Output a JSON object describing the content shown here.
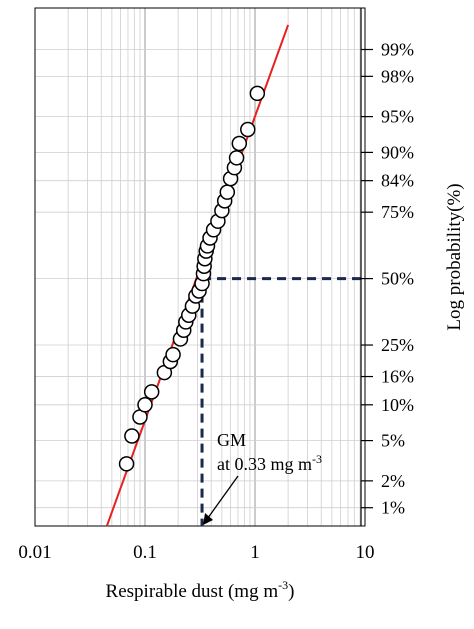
{
  "chart_data": {
    "type": "scatter",
    "title": "",
    "xlabel": "Respirable dust (mg m",
    "xlabel_sup": "-3",
    "xlabel_end": ")",
    "ylabel": "Log probability(%)",
    "x_scale": "log",
    "y_scale": "probability",
    "xlim": [
      0.01,
      10
    ],
    "ylim_percent": [
      0.6,
      99.7
    ],
    "grid": true,
    "x_ticks": [
      {
        "value": 0.01,
        "label": "0.01"
      },
      {
        "value": 0.1,
        "label": "0.1"
      },
      {
        "value": 1,
        "label": "1"
      },
      {
        "value": 10,
        "label": "10"
      }
    ],
    "y_ticks": [
      {
        "value": 99,
        "label": "99%"
      },
      {
        "value": 98,
        "label": "98%"
      },
      {
        "value": 95,
        "label": "95%"
      },
      {
        "value": 90,
        "label": "90%"
      },
      {
        "value": 84,
        "label": "84%"
      },
      {
        "value": 75,
        "label": "75%"
      },
      {
        "value": 50,
        "label": "50%"
      },
      {
        "value": 25,
        "label": "25%"
      },
      {
        "value": 16,
        "label": "16%"
      },
      {
        "value": 10,
        "label": "10%"
      },
      {
        "value": 5,
        "label": "5%"
      },
      {
        "value": 2,
        "label": "2%"
      },
      {
        "value": 1,
        "label": "1%"
      }
    ],
    "series": [
      {
        "marker": "open-circle",
        "x": [
          0.068,
          0.076,
          0.09,
          0.1,
          0.115,
          0.15,
          0.17,
          0.18,
          0.21,
          0.225,
          0.235,
          0.25,
          0.27,
          0.29,
          0.31,
          0.33,
          0.34,
          0.345,
          0.35,
          0.36,
          0.37,
          0.39,
          0.42,
          0.46,
          0.5,
          0.53,
          0.56,
          0.6,
          0.65,
          0.68,
          0.72,
          0.86,
          1.05
        ],
        "y": [
          3.0,
          5.5,
          8.0,
          10.0,
          12.5,
          17.0,
          20.0,
          22.0,
          27.0,
          30.0,
          33.0,
          35.5,
          39.0,
          43.0,
          45.0,
          48.0,
          52.0,
          55.0,
          58.0,
          61.0,
          63.0,
          66.0,
          69.0,
          72.0,
          75.5,
          78.5,
          81.0,
          84.5,
          87.0,
          89.0,
          91.5,
          93.5,
          97.0
        ]
      },
      {
        "type": "fit-line",
        "color": "#e8201e",
        "x": [
          0.045,
          2.0
        ],
        "y": [
          0.6,
          99.5
        ]
      }
    ],
    "annotations": [
      {
        "text_line1": "GM",
        "text_line2": "at 0.33 mg m",
        "sup": "-3",
        "x": 0.33,
        "y": 50
      }
    ],
    "reference_lines": {
      "color": "#1a2a4f",
      "style": "dashed",
      "x": 0.33,
      "y": 50
    }
  }
}
